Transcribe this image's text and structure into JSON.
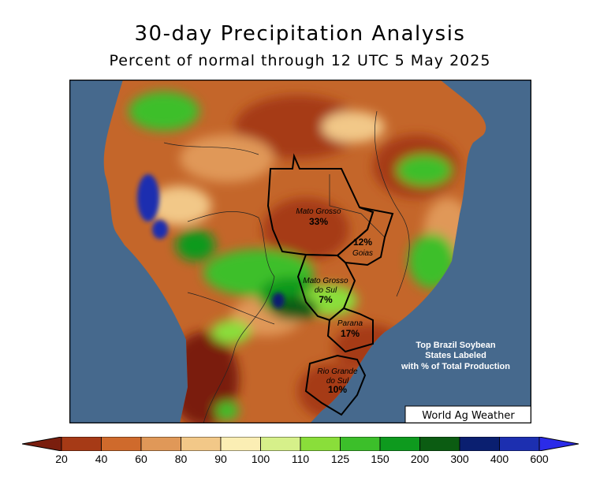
{
  "title": "30-day Precipitation Analysis",
  "subtitle": "Percent of normal through 12 UTC 5 May 2025",
  "legend": {
    "ticks": [
      "20",
      "40",
      "60",
      "80",
      "90",
      "100",
      "110",
      "125",
      "150",
      "200",
      "300",
      "400",
      "600"
    ],
    "colors": [
      "#7a1e0e",
      "#a63a16",
      "#cf6a2c",
      "#e09858",
      "#f2c888",
      "#fbeeb4",
      "#d6f08a",
      "#8ade3a",
      "#3cbf2a",
      "#0e9a1e",
      "#0b5c12",
      "#0a1f70",
      "#1c2fb0",
      "#2b2be8"
    ]
  },
  "states": [
    {
      "name": "Mato Grosso",
      "pct": "33%"
    },
    {
      "name": "Goias",
      "pct": "12%"
    },
    {
      "name": "Mato Grosso do Sul",
      "line1": "Mato Grosso",
      "line2": "do Sul",
      "pct": "7%"
    },
    {
      "name": "Parana",
      "pct": "17%"
    },
    {
      "name": "Rio Grande do Sul",
      "line1": "Rio Grande",
      "line2": "do Sul",
      "pct": "10%"
    }
  ],
  "note": {
    "line1": "Top Brazil Soybean",
    "line2": "States Labeled",
    "line3": "with % of Total Production"
  },
  "credit": "World Ag Weather",
  "ocean_color": "#46698d"
}
